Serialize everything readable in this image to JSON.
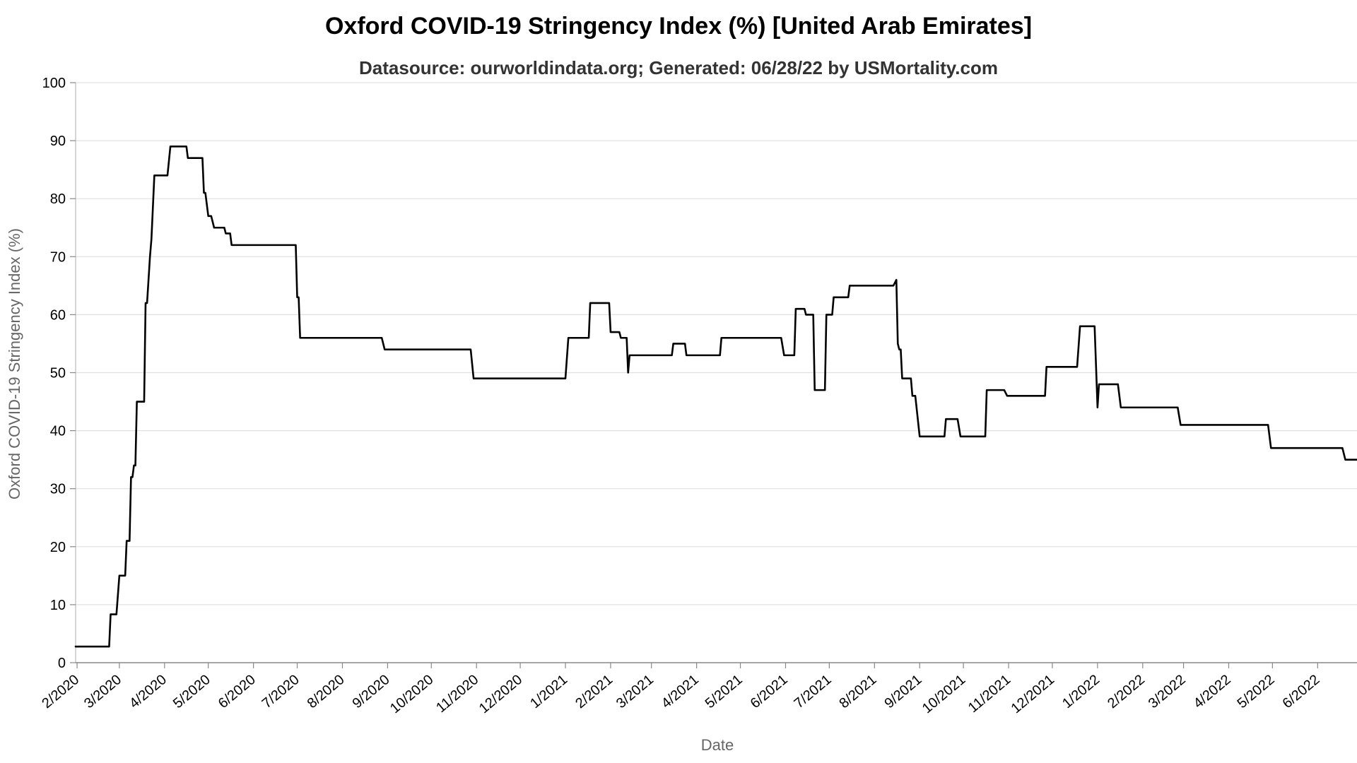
{
  "chart_data": {
    "type": "line",
    "title": "Oxford COVID-19 Stringency Index (%) [United Arab Emirates]",
    "subtitle": "Datasource: ourworldindata.org; Generated: 06/28/22 by USMortality.com",
    "xlabel": "Date",
    "ylabel": "Oxford COVID-19 Stringency Index (%)",
    "ylim": [
      0,
      100
    ],
    "yticks": [
      0,
      10,
      20,
      30,
      40,
      50,
      60,
      70,
      80,
      90,
      100
    ],
    "xlim": [
      "2020-01-31",
      "2022-06-28"
    ],
    "xticks": [
      {
        "date": "2020-02-01",
        "label": "2/2020"
      },
      {
        "date": "2020-03-01",
        "label": "3/2020"
      },
      {
        "date": "2020-04-01",
        "label": "4/2020"
      },
      {
        "date": "2020-05-01",
        "label": "5/2020"
      },
      {
        "date": "2020-06-01",
        "label": "6/2020"
      },
      {
        "date": "2020-07-01",
        "label": "7/2020"
      },
      {
        "date": "2020-08-01",
        "label": "8/2020"
      },
      {
        "date": "2020-09-01",
        "label": "9/2020"
      },
      {
        "date": "2020-10-01",
        "label": "10/2020"
      },
      {
        "date": "2020-11-01",
        "label": "11/2020"
      },
      {
        "date": "2020-12-01",
        "label": "12/2020"
      },
      {
        "date": "2021-01-01",
        "label": "1/2021"
      },
      {
        "date": "2021-02-01",
        "label": "2/2021"
      },
      {
        "date": "2021-03-01",
        "label": "3/2021"
      },
      {
        "date": "2021-04-01",
        "label": "4/2021"
      },
      {
        "date": "2021-05-01",
        "label": "5/2021"
      },
      {
        "date": "2021-06-01",
        "label": "6/2021"
      },
      {
        "date": "2021-07-01",
        "label": "7/2021"
      },
      {
        "date": "2021-08-01",
        "label": "8/2021"
      },
      {
        "date": "2021-09-01",
        "label": "9/2021"
      },
      {
        "date": "2021-10-01",
        "label": "10/2021"
      },
      {
        "date": "2021-11-01",
        "label": "11/2021"
      },
      {
        "date": "2021-12-01",
        "label": "12/2021"
      },
      {
        "date": "2022-01-01",
        "label": "1/2022"
      },
      {
        "date": "2022-02-01",
        "label": "2/2022"
      },
      {
        "date": "2022-03-01",
        "label": "3/2022"
      },
      {
        "date": "2022-04-01",
        "label": "4/2022"
      },
      {
        "date": "2022-05-01",
        "label": "5/2022"
      },
      {
        "date": "2022-06-01",
        "label": "6/2022"
      }
    ],
    "grid": true,
    "line_color": "#000000",
    "series": [
      {
        "points": [
          [
            "2020-01-31",
            2.78
          ],
          [
            "2020-02-23",
            2.78
          ],
          [
            "2020-02-24",
            8.33
          ],
          [
            "2020-02-28",
            8.33
          ],
          [
            "2020-03-01",
            15.0
          ],
          [
            "2020-03-05",
            15.0
          ],
          [
            "2020-03-06",
            21.0
          ],
          [
            "2020-03-08",
            21.0
          ],
          [
            "2020-03-09",
            32.0
          ],
          [
            "2020-03-10",
            32.0
          ],
          [
            "2020-03-11",
            34.0
          ],
          [
            "2020-03-12",
            34.0
          ],
          [
            "2020-03-13",
            45.0
          ],
          [
            "2020-03-18",
            45.0
          ],
          [
            "2020-03-19",
            62.0
          ],
          [
            "2020-03-20",
            62.0
          ],
          [
            "2020-03-22",
            70.0
          ],
          [
            "2020-03-23",
            73.0
          ],
          [
            "2020-03-25",
            84.0
          ],
          [
            "2020-04-03",
            84.0
          ],
          [
            "2020-04-05",
            89.0
          ],
          [
            "2020-04-16",
            89.0
          ],
          [
            "2020-04-17",
            87.0
          ],
          [
            "2020-04-27",
            87.0
          ],
          [
            "2020-04-28",
            81.0
          ],
          [
            "2020-04-29",
            81.0
          ],
          [
            "2020-05-01",
            77.0
          ],
          [
            "2020-05-03",
            77.0
          ],
          [
            "2020-05-05",
            75.0
          ],
          [
            "2020-05-12",
            75.0
          ],
          [
            "2020-05-13",
            74.0
          ],
          [
            "2020-05-16",
            74.0
          ],
          [
            "2020-05-17",
            72.0
          ],
          [
            "2020-06-30",
            72.0
          ],
          [
            "2020-07-01",
            63.0
          ],
          [
            "2020-07-02",
            63.0
          ],
          [
            "2020-07-03",
            56.0
          ],
          [
            "2020-08-28",
            56.0
          ],
          [
            "2020-08-30",
            54.0
          ],
          [
            "2020-10-28",
            54.0
          ],
          [
            "2020-10-30",
            49.0
          ],
          [
            "2021-01-01",
            49.0
          ],
          [
            "2021-01-03",
            56.0
          ],
          [
            "2021-01-17",
            56.0
          ],
          [
            "2021-01-18",
            62.0
          ],
          [
            "2021-01-31",
            62.0
          ],
          [
            "2021-02-01",
            57.0
          ],
          [
            "2021-02-07",
            57.0
          ],
          [
            "2021-02-08",
            56.0
          ],
          [
            "2021-02-12",
            56.0
          ],
          [
            "2021-02-13",
            50.0
          ],
          [
            "2021-02-14",
            53.0
          ],
          [
            "2021-03-15",
            53.0
          ],
          [
            "2021-03-16",
            55.0
          ],
          [
            "2021-03-24",
            55.0
          ],
          [
            "2021-03-25",
            53.0
          ],
          [
            "2021-04-17",
            53.0
          ],
          [
            "2021-04-18",
            56.0
          ],
          [
            "2021-05-29",
            56.0
          ],
          [
            "2021-05-31",
            53.0
          ],
          [
            "2021-06-07",
            53.0
          ],
          [
            "2021-06-08",
            61.0
          ],
          [
            "2021-06-14",
            61.0
          ],
          [
            "2021-06-15",
            60.0
          ],
          [
            "2021-06-20",
            60.0
          ],
          [
            "2021-06-21",
            47.0
          ],
          [
            "2021-06-28",
            47.0
          ],
          [
            "2021-06-29",
            60.0
          ],
          [
            "2021-07-03",
            60.0
          ],
          [
            "2021-07-04",
            63.0
          ],
          [
            "2021-07-14",
            63.0
          ],
          [
            "2021-07-15",
            65.0
          ],
          [
            "2021-08-14",
            65.0
          ],
          [
            "2021-08-16",
            66.0
          ],
          [
            "2021-08-17",
            55.0
          ],
          [
            "2021-08-18",
            54.0
          ],
          [
            "2021-08-19",
            54.0
          ],
          [
            "2021-08-20",
            49.0
          ],
          [
            "2021-08-26",
            49.0
          ],
          [
            "2021-08-27",
            46.0
          ],
          [
            "2021-08-29",
            46.0
          ],
          [
            "2021-09-01",
            39.0
          ],
          [
            "2021-09-18",
            39.0
          ],
          [
            "2021-09-19",
            42.0
          ],
          [
            "2021-09-27",
            42.0
          ],
          [
            "2021-09-29",
            39.0
          ],
          [
            "2021-10-16",
            39.0
          ],
          [
            "2021-10-17",
            47.0
          ],
          [
            "2021-10-29",
            47.0
          ],
          [
            "2021-10-31",
            46.0
          ],
          [
            "2021-11-26",
            46.0
          ],
          [
            "2021-11-27",
            51.0
          ],
          [
            "2021-12-18",
            51.0
          ],
          [
            "2021-12-20",
            58.0
          ],
          [
            "2021-12-30",
            58.0
          ],
          [
            "2022-01-01",
            44.0
          ],
          [
            "2022-01-02",
            48.0
          ],
          [
            "2022-01-15",
            48.0
          ],
          [
            "2022-01-17",
            44.0
          ],
          [
            "2022-02-25",
            44.0
          ],
          [
            "2022-02-27",
            41.0
          ],
          [
            "2022-04-28",
            41.0
          ],
          [
            "2022-04-30",
            37.0
          ],
          [
            "2022-06-18",
            37.0
          ],
          [
            "2022-06-20",
            35.0
          ],
          [
            "2022-06-28",
            35.0
          ]
        ]
      }
    ]
  }
}
